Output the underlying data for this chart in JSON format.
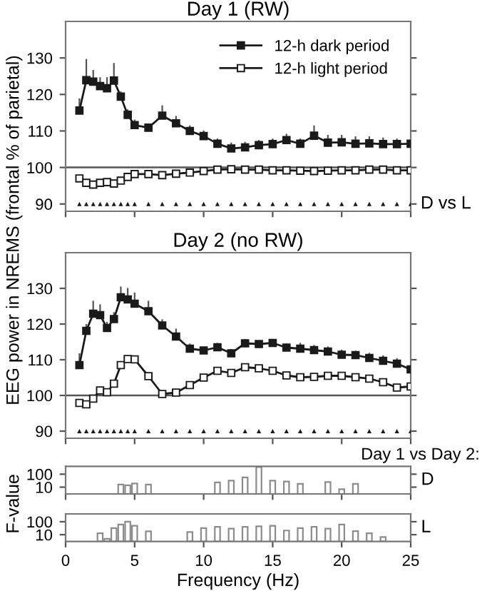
{
  "chart_data": [
    {
      "type": "line",
      "title": "Day 1 (RW)",
      "ylabel": "EEG power in NREMS (frontal % of parietal)",
      "xlim": [
        0,
        25
      ],
      "xticks": [
        0,
        5,
        10,
        15,
        20,
        25
      ],
      "ylim": [
        88,
        140
      ],
      "yticks": [
        90,
        100,
        110,
        120,
        130
      ],
      "tick_labels": "y",
      "legend": "top right",
      "grid": false,
      "x": [
        1,
        1.5,
        2,
        2.5,
        3,
        3.5,
        4,
        4.5,
        5,
        6,
        7,
        8,
        9,
        10,
        11,
        12,
        13,
        14,
        15,
        16,
        17,
        18,
        19,
        20,
        21,
        22,
        23,
        24,
        25
      ],
      "ref_lines": [
        {
          "axis": "y",
          "value": 100,
          "color": "#555555"
        }
      ],
      "annotations": [
        {
          "text": "D vs L",
          "x": 25,
          "y": 90
        }
      ],
      "series": [
        {
          "name": "12-h dark period",
          "color": "#1a1a1a",
          "marker": "square",
          "values": [
            115.6,
            123.9,
            123.5,
            122.3,
            121.7,
            123.8,
            119.4,
            114.4,
            111.6,
            110.9,
            114.2,
            112.1,
            110.0,
            108.6,
            106.5,
            105.2,
            105.5,
            106.1,
            106.4,
            107.5,
            106.5,
            108.7,
            106.8,
            106.9,
            106.5,
            106.6,
            106.4,
            106.4,
            106.5
          ],
          "errors": [
            [
              115.6,
              118.7
            ],
            [
              123.9,
              129.5
            ],
            [
              123.5,
              126.5
            ],
            [
              122.3,
              124.5
            ],
            [
              121.7,
              124.5
            ],
            [
              123.8,
              128.4
            ],
            [
              119.4,
              120.6
            ],
            [
              114.4,
              115.7
            ],
            [
              111.6,
              112.9
            ],
            null,
            [
              114.2,
              116.8
            ],
            [
              112.1,
              113.9
            ],
            [
              110.0,
              111.3
            ],
            [
              108.6,
              109.9
            ],
            [
              106.5,
              107.7
            ],
            [
              105.2,
              106.6
            ],
            [
              105.5,
              106.8
            ],
            [
              106.1,
              107.3
            ],
            [
              106.4,
              107.7
            ],
            [
              107.5,
              109.0
            ],
            [
              106.5,
              107.7
            ],
            [
              108.7,
              111.3
            ],
            [
              106.8,
              108.7
            ],
            [
              106.9,
              108.7
            ],
            [
              106.5,
              108.3
            ],
            [
              106.6,
              108.3
            ],
            [
              106.4,
              108.0
            ],
            [
              106.4,
              107.7
            ],
            [
              106.5,
              107.7
            ]
          ]
        },
        {
          "name": "12-h light period",
          "color": "#ffffff",
          "marker": "square",
          "values": [
            97.0,
            95.8,
            95.3,
            95.8,
            96.0,
            95.6,
            96.4,
            97.4,
            98.2,
            98.2,
            97.9,
            98.3,
            98.6,
            99.0,
            99.4,
            99.5,
            99.4,
            99.4,
            99.2,
            99.2,
            99.1,
            99.0,
            99.1,
            99.2,
            99.2,
            99.4,
            99.4,
            99.2,
            99.2
          ]
        },
        {
          "type": "scatter",
          "color": "#1a1a1a",
          "marker": "triangle",
          "values": [
            90,
            90,
            90,
            90,
            90,
            90,
            90,
            90,
            90,
            90,
            90,
            90,
            90,
            90,
            90,
            90,
            90,
            90,
            90,
            90,
            90,
            90,
            90,
            90,
            90,
            90,
            90,
            90,
            90
          ]
        }
      ]
    },
    {
      "type": "line",
      "title": "Day 2 (no RW)",
      "xlim": [
        0,
        25
      ],
      "xticks": [
        0,
        5,
        10,
        15,
        20,
        25
      ],
      "ylim": [
        88,
        140
      ],
      "yticks": [
        90,
        100,
        110,
        120,
        130
      ],
      "tick_labels": "y",
      "grid": false,
      "x": [
        1,
        1.5,
        2,
        2.5,
        3,
        3.5,
        4,
        4.5,
        5,
        6,
        7,
        8,
        9,
        10,
        11,
        12,
        13,
        14,
        15,
        16,
        17,
        18,
        19,
        20,
        21,
        22,
        23,
        24,
        25
      ],
      "ref_lines": [
        {
          "axis": "y",
          "value": 100,
          "color": "#555555"
        }
      ],
      "series": [
        {
          "color": "#1a1a1a",
          "marker": "square",
          "values": [
            108.5,
            118.1,
            122.9,
            122.5,
            118.9,
            121.4,
            127.5,
            126.9,
            125.7,
            123.6,
            119.6,
            116.5,
            113.1,
            112.6,
            113.5,
            111.8,
            114.6,
            114.4,
            114.7,
            113.4,
            113.1,
            112.7,
            112.3,
            111.4,
            111.3,
            110.5,
            109.7,
            108.9,
            107.3
          ],
          "errors": [
            [
              108.5,
              111.6
            ],
            [
              118.1,
              119.8
            ],
            [
              122.9,
              126.3
            ],
            [
              122.5,
              125.3
            ],
            [
              118.9,
              120.4
            ],
            [
              121.4,
              123.1
            ],
            [
              127.5,
              130.3
            ],
            [
              126.9,
              129.9
            ],
            [
              125.7,
              128.6
            ],
            [
              123.6,
              126.3
            ],
            [
              119.6,
              121.1
            ],
            [
              116.5,
              118.5
            ],
            [
              113.1,
              114.3
            ],
            [
              112.6,
              113.2
            ],
            [
              113.5,
              114.5
            ],
            [
              111.8,
              112.8
            ],
            [
              114.6,
              115.6
            ],
            [
              114.4,
              115.2
            ],
            [
              114.7,
              115.6
            ],
            [
              113.4,
              114.3
            ],
            [
              113.1,
              114.5
            ],
            [
              112.7,
              113.9
            ],
            [
              112.3,
              113.5
            ],
            [
              111.4,
              112.6
            ],
            [
              111.3,
              112.3
            ],
            [
              110.5,
              111.7
            ],
            [
              109.7,
              111.0
            ],
            [
              108.9,
              110.2
            ],
            [
              107.3,
              108.0
            ]
          ]
        },
        {
          "color": "#ffffff",
          "marker": "square",
          "values": [
            97.9,
            97.5,
            99.1,
            101.4,
            100.9,
            103.3,
            108.5,
            110.2,
            110.1,
            105.4,
            100.4,
            100.8,
            102.9,
            105.0,
            106.9,
            106.3,
            107.9,
            107.6,
            106.9,
            105.6,
            105.1,
            105.2,
            105.5,
            105.5,
            105.1,
            104.7,
            103.7,
            102.2,
            102.5
          ]
        },
        {
          "type": "scatter",
          "color": "#1a1a1a",
          "marker": "triangle",
          "values": [
            90,
            90,
            90,
            90,
            90,
            90,
            90,
            90,
            90,
            90,
            90,
            90,
            90,
            90,
            90,
            90,
            90,
            90,
            90,
            90,
            90,
            90,
            90,
            90,
            90,
            90,
            90,
            90,
            90
          ]
        }
      ]
    },
    {
      "type": "bar",
      "title": "Day 1 vs Day 2:",
      "ylabel": "F-value",
      "log": "y",
      "xlim": [
        0,
        25
      ],
      "xticks": [
        0,
        5,
        10,
        15,
        20,
        25
      ],
      "ylim": [
        3,
        400
      ],
      "yticks": [
        10,
        100
      ],
      "tick_labels": "y",
      "grid": false,
      "annotations": [
        "D"
      ],
      "series": [
        {
          "color": "#ffffff",
          "x": [
            4,
            4.5,
            5,
            6,
            11,
            12,
            13,
            14,
            15,
            16,
            17,
            19,
            20,
            21
          ],
          "values": [
            16,
            14,
            19,
            16,
            23,
            32,
            56,
            350,
            32,
            27,
            18,
            25,
            7,
            18
          ]
        }
      ]
    },
    {
      "type": "bar",
      "xlabel": "Frequency (Hz)",
      "log": "y",
      "xlim": [
        0,
        25
      ],
      "xticks": [
        0,
        5,
        10,
        15,
        20,
        25
      ],
      "ylim": [
        3,
        400
      ],
      "yticks": [
        10,
        100
      ],
      "grid": false,
      "annotations": [
        "L"
      ],
      "series": [
        {
          "color": "#ffffff",
          "x": [
            2.5,
            3,
            3.5,
            4,
            4.5,
            5,
            6,
            9,
            10,
            11,
            12,
            13,
            14,
            15,
            16,
            17,
            18,
            19,
            20,
            21,
            22,
            23
          ],
          "values": [
            13,
            4.8,
            32,
            61,
            100,
            48,
            18,
            16,
            32,
            40,
            29,
            40,
            44,
            48,
            21,
            32,
            40,
            29,
            61,
            19,
            13,
            6.6
          ]
        }
      ]
    }
  ]
}
